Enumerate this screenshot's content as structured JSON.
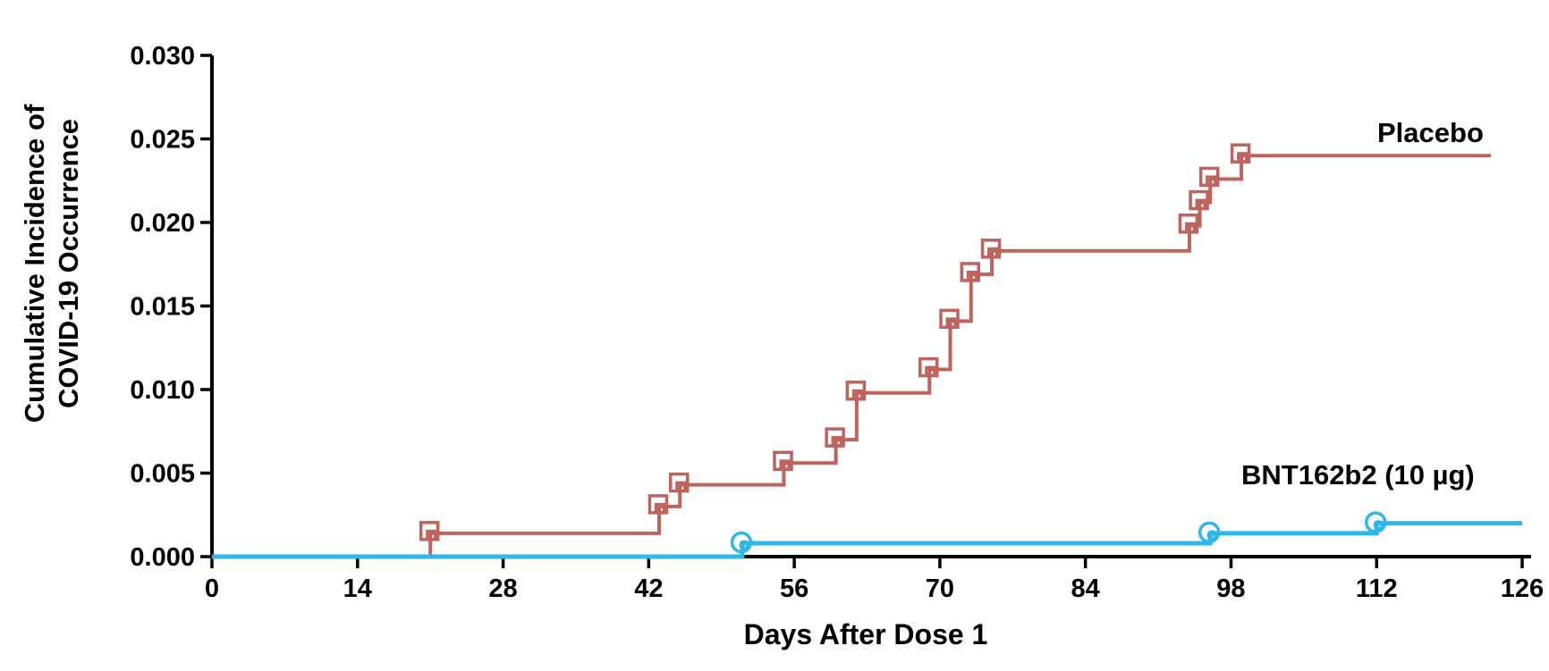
{
  "figure": {
    "background_color": "#ffffff",
    "axis_color": "#000000",
    "text_color": "#000000"
  },
  "chart_data": {
    "type": "line",
    "subtype": "kaplan-meier-step",
    "title": "",
    "xlabel": "Days After Dose 1",
    "ylabel_lines": [
      "Cumulative Incidence of",
      "COVID-19 Occurrence"
    ],
    "xlim": [
      0,
      126
    ],
    "ylim": [
      0.0,
      0.03
    ],
    "x_ticks": [
      0,
      14,
      28,
      42,
      56,
      70,
      84,
      98,
      112,
      126
    ],
    "y_ticks": [
      "0.000",
      "0.005",
      "0.010",
      "0.015",
      "0.020",
      "0.025",
      "0.030"
    ],
    "grid": false,
    "legend_position": "labels-inline-right-of-curves",
    "series": [
      {
        "name": "Placebo",
        "color": "#C0635C",
        "marker": "open-square",
        "start_x": 0,
        "start_y": 0.0,
        "end_x": 123,
        "points": [
          [
            21,
            0.0014
          ],
          [
            43,
            0.003
          ],
          [
            45,
            0.0043
          ],
          [
            55,
            0.0056
          ],
          [
            60,
            0.007
          ],
          [
            62,
            0.0098
          ],
          [
            69,
            0.0112
          ],
          [
            71,
            0.0141
          ],
          [
            73,
            0.0169
          ],
          [
            75,
            0.0183
          ],
          [
            94,
            0.0198
          ],
          [
            95,
            0.0212
          ],
          [
            96,
            0.0226
          ],
          [
            99,
            0.024
          ]
        ]
      },
      {
        "name": "BNT162b2 (10 µg)",
        "color": "#2DB7EB",
        "marker": "open-circle",
        "start_x": 0,
        "start_y": 0.0,
        "end_x": 126,
        "points": [
          [
            51,
            0.0008
          ],
          [
            96,
            0.0014
          ],
          [
            112,
            0.002
          ]
        ]
      }
    ]
  }
}
